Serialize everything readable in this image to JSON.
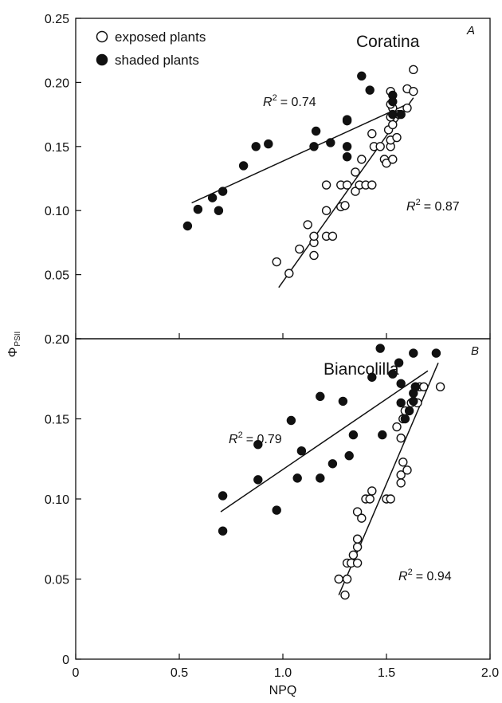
{
  "chart_data": [
    {
      "type": "scatter",
      "panel_letter": "A",
      "title": "Coratina",
      "xlabel": "NPQ",
      "ylabel": "ΦPSII",
      "xlim": [
        0,
        2.0
      ],
      "ylim": [
        0,
        0.25
      ],
      "x_ticks": [
        "0",
        "0.5",
        "1.0",
        "1.5",
        "2.0"
      ],
      "y_ticks": [
        "0",
        "0.05",
        "0.10",
        "0.15",
        "0.20",
        "0.25"
      ],
      "legend": {
        "placement": "top-left",
        "entries": [
          "exposed plants",
          "shaded plants"
        ]
      },
      "series": [
        {
          "name": "exposed plants",
          "marker": "open-circle",
          "r2_text": "= 0.87",
          "fit": [
            [
              0.98,
              0.04
            ],
            [
              1.63,
              0.188
            ]
          ],
          "points": [
            [
              0.97,
              0.06
            ],
            [
              1.03,
              0.051
            ],
            [
              1.08,
              0.07
            ],
            [
              1.12,
              0.089
            ],
            [
              1.15,
              0.065
            ],
            [
              1.15,
              0.075
            ],
            [
              1.15,
              0.08
            ],
            [
              1.21,
              0.08
            ],
            [
              1.24,
              0.08
            ],
            [
              1.21,
              0.1
            ],
            [
              1.21,
              0.12
            ],
            [
              1.28,
              0.103
            ],
            [
              1.3,
              0.104
            ],
            [
              1.28,
              0.12
            ],
            [
              1.31,
              0.12
            ],
            [
              1.35,
              0.115
            ],
            [
              1.37,
              0.12
            ],
            [
              1.4,
              0.12
            ],
            [
              1.43,
              0.12
            ],
            [
              1.35,
              0.13
            ],
            [
              1.38,
              0.14
            ],
            [
              1.43,
              0.16
            ],
            [
              1.44,
              0.15
            ],
            [
              1.47,
              0.15
            ],
            [
              1.49,
              0.14
            ],
            [
              1.5,
              0.137
            ],
            [
              1.53,
              0.14
            ],
            [
              1.52,
              0.15
            ],
            [
              1.52,
              0.155
            ],
            [
              1.55,
              0.157
            ],
            [
              1.51,
              0.163
            ],
            [
              1.53,
              0.167
            ],
            [
              1.52,
              0.173
            ],
            [
              1.53,
              0.18
            ],
            [
              1.56,
              0.175
            ],
            [
              1.52,
              0.183
            ],
            [
              1.52,
              0.193
            ],
            [
              1.6,
              0.18
            ],
            [
              1.6,
              0.195
            ],
            [
              1.63,
              0.193
            ],
            [
              1.63,
              0.21
            ]
          ]
        },
        {
          "name": "shaded plants",
          "marker": "filled-circle",
          "r2_text": "= 0.74",
          "fit": [
            [
              0.56,
              0.106
            ],
            [
              1.6,
              0.183
            ]
          ],
          "points": [
            [
              0.54,
              0.088
            ],
            [
              0.59,
              0.101
            ],
            [
              0.66,
              0.11
            ],
            [
              0.71,
              0.115
            ],
            [
              0.69,
              0.1
            ],
            [
              0.81,
              0.135
            ],
            [
              0.87,
              0.15
            ],
            [
              0.93,
              0.152
            ],
            [
              1.15,
              0.15
            ],
            [
              1.16,
              0.162
            ],
            [
              1.23,
              0.153
            ],
            [
              1.31,
              0.15
            ],
            [
              1.31,
              0.142
            ],
            [
              1.31,
              0.17
            ],
            [
              1.31,
              0.171
            ],
            [
              1.38,
              0.205
            ],
            [
              1.42,
              0.194
            ],
            [
              1.53,
              0.19
            ],
            [
              1.53,
              0.185
            ],
            [
              1.53,
              0.175
            ],
            [
              1.57,
              0.175
            ]
          ]
        }
      ]
    },
    {
      "type": "scatter",
      "panel_letter": "B",
      "title": "Biancolilla",
      "xlabel": "NPQ",
      "ylabel": "ΦPSII",
      "xlim": [
        0,
        2.0
      ],
      "ylim": [
        0,
        0.2
      ],
      "x_ticks": [
        "0",
        "0.5",
        "1.0",
        "1.5",
        "2.0"
      ],
      "y_ticks": [
        "0",
        "0.05",
        "0.10",
        "0.15",
        "0.20"
      ],
      "series": [
        {
          "name": "exposed plants",
          "marker": "open-circle",
          "r2_text": "= 0.94",
          "fit": [
            [
              1.27,
              0.04
            ],
            [
              1.75,
              0.185
            ]
          ],
          "points": [
            [
              1.27,
              0.05
            ],
            [
              1.3,
              0.04
            ],
            [
              1.31,
              0.05
            ],
            [
              1.31,
              0.06
            ],
            [
              1.33,
              0.06
            ],
            [
              1.34,
              0.065
            ],
            [
              1.36,
              0.06
            ],
            [
              1.36,
              0.07
            ],
            [
              1.36,
              0.075
            ],
            [
              1.36,
              0.092
            ],
            [
              1.38,
              0.088
            ],
            [
              1.4,
              0.1
            ],
            [
              1.42,
              0.1
            ],
            [
              1.43,
              0.105
            ],
            [
              1.5,
              0.1
            ],
            [
              1.52,
              0.1
            ],
            [
              1.57,
              0.11
            ],
            [
              1.57,
              0.115
            ],
            [
              1.58,
              0.123
            ],
            [
              1.6,
              0.118
            ],
            [
              1.55,
              0.145
            ],
            [
              1.57,
              0.138
            ],
            [
              1.58,
              0.15
            ],
            [
              1.59,
              0.155
            ],
            [
              1.62,
              0.16
            ],
            [
              1.65,
              0.16
            ],
            [
              1.64,
              0.17
            ],
            [
              1.66,
              0.17
            ],
            [
              1.68,
              0.17
            ],
            [
              1.76,
              0.17
            ]
          ]
        },
        {
          "name": "shaded plants",
          "marker": "filled-circle",
          "r2_text": "= 0.79",
          "fit": [
            [
              0.7,
              0.092
            ],
            [
              1.7,
              0.18
            ]
          ],
          "points": [
            [
              0.71,
              0.08
            ],
            [
              0.71,
              0.102
            ],
            [
              0.88,
              0.134
            ],
            [
              0.88,
              0.112
            ],
            [
              0.97,
              0.093
            ],
            [
              1.04,
              0.149
            ],
            [
              1.09,
              0.13
            ],
            [
              1.07,
              0.113
            ],
            [
              1.18,
              0.113
            ],
            [
              1.18,
              0.164
            ],
            [
              1.24,
              0.122
            ],
            [
              1.29,
              0.161
            ],
            [
              1.32,
              0.127
            ],
            [
              1.34,
              0.14
            ],
            [
              1.43,
              0.176
            ],
            [
              1.47,
              0.194
            ],
            [
              1.48,
              0.14
            ],
            [
              1.53,
              0.178
            ],
            [
              1.56,
              0.185
            ],
            [
              1.57,
              0.172
            ],
            [
              1.57,
              0.16
            ],
            [
              1.59,
              0.15
            ],
            [
              1.61,
              0.155
            ],
            [
              1.63,
              0.191
            ],
            [
              1.63,
              0.166
            ],
            [
              1.63,
              0.161
            ],
            [
              1.64,
              0.17
            ],
            [
              1.74,
              0.191
            ]
          ]
        }
      ]
    }
  ]
}
